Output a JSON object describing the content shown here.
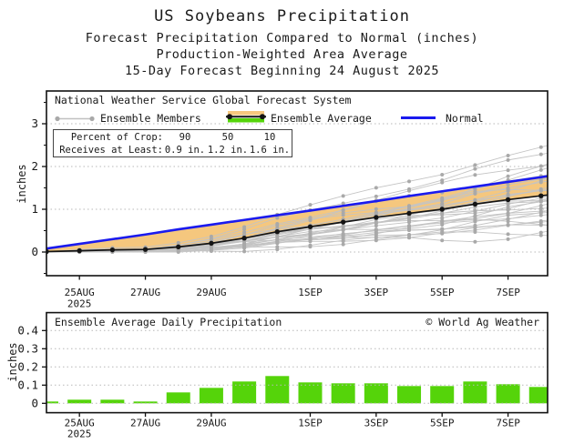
{
  "header": {
    "title": "US Soybeans Precipitation",
    "line2": "Forecast Precipitation Compared to Normal (inches)",
    "line3": "Production-Weighted Area Average",
    "line4": "15-Day Forecast Beginning 24 August 2025"
  },
  "top_panel": {
    "legend_header": "National Weather Service Global Forecast System",
    "legend": {
      "members": "Ensemble Members",
      "average": "Ensemble Average",
      "normal": "Normal"
    },
    "info_box": {
      "rows": [
        {
          "label": "Percent of Crop:",
          "v1": "90",
          "v2": "50",
          "v3": "10"
        },
        {
          "label": "Receives at Least:",
          "v1": "0.9 in.",
          "v2": "1.2 in.",
          "v3": "1.6 in."
        }
      ]
    },
    "ylabel": "inches"
  },
  "bottom_panel": {
    "title": "Ensemble Average Daily Precipitation",
    "credit": "© World Ag Weather",
    "ylabel": "inches"
  },
  "chart_data": [
    {
      "type": "line",
      "title": "Forecast cumulative precipitation compared to normal",
      "x": [
        "24AUG",
        "25AUG",
        "26AUG",
        "27AUG",
        "28AUG",
        "29AUG",
        "30AUG",
        "31AUG",
        "1SEP",
        "2SEP",
        "3SEP",
        "4SEP",
        "5SEP",
        "6SEP",
        "7SEP",
        "8SEP"
      ],
      "xtick_indices": [
        1,
        3,
        5,
        8,
        10,
        12,
        14
      ],
      "xtick_labels": [
        "25AUG",
        "27AUG",
        "29AUG",
        "1SEP",
        "3SEP",
        "5SEP",
        "7SEP"
      ],
      "year_label": "2025",
      "ylabel": "inches",
      "ylim": [
        -0.55,
        3.77
      ],
      "yticks": [
        0,
        1,
        2,
        3
      ],
      "y_minor_ticks": [
        -0.5,
        0.5,
        1.5,
        2.5,
        3.5
      ],
      "grid": "dotted horizontal",
      "legend_position": "top-left-inside",
      "series": [
        {
          "name": "Ensemble Average",
          "values": [
            0.01,
            0.03,
            0.05,
            0.06,
            0.12,
            0.205,
            0.325,
            0.475,
            0.59,
            0.7,
            0.81,
            0.905,
            1.0,
            1.12,
            1.225,
            1.315
          ]
        },
        {
          "name": "Normal",
          "values": [
            0.08,
            0.19,
            0.3,
            0.41,
            0.53,
            0.64,
            0.75,
            0.86,
            0.97,
            1.08,
            1.19,
            1.31,
            1.42,
            1.53,
            1.64,
            1.75
          ]
        },
        {
          "name": "Ensemble Members",
          "count": 30,
          "final_values": [
            2.42,
            2.25,
            2.1,
            1.95,
            1.85,
            1.78,
            1.7,
            1.64,
            1.58,
            1.52,
            1.47,
            1.42,
            1.37,
            1.32,
            1.27,
            1.22,
            1.17,
            1.12,
            1.07,
            1.02,
            0.97,
            0.92,
            0.87,
            0.82,
            0.77,
            0.72,
            0.66,
            0.6,
            0.52,
            0.46
          ]
        }
      ],
      "annotations": {
        "percent_of_crop": [
          90,
          50,
          10
        ],
        "receives_at_least_inches": [
          0.9,
          1.2,
          1.6
        ]
      },
      "colors": {
        "normal": "#1a1aee",
        "average": "#141414",
        "members": "#c4c4c4",
        "member_dots": "#a9a9a9",
        "deficit_fill": "#f5c77e",
        "surplus_fill": "#55d40a",
        "grid": "#b8b8b8",
        "text": "#1a1a1a"
      }
    },
    {
      "type": "bar",
      "title": "Ensemble Average Daily Precipitation",
      "categories": [
        "24AUG",
        "25AUG",
        "26AUG",
        "27AUG",
        "28AUG",
        "29AUG",
        "30AUG",
        "31AUG",
        "1SEP",
        "2SEP",
        "3SEP",
        "4SEP",
        "5SEP",
        "6SEP",
        "7SEP",
        "8SEP"
      ],
      "values": [
        0.01,
        0.02,
        0.02,
        0.01,
        0.06,
        0.085,
        0.12,
        0.15,
        0.115,
        0.11,
        0.11,
        0.095,
        0.095,
        0.12,
        0.105,
        0.09
      ],
      "xtick_indices": [
        1,
        3,
        5,
        8,
        10,
        12,
        14
      ],
      "xtick_labels": [
        "25AUG",
        "27AUG",
        "29AUG",
        "1SEP",
        "3SEP",
        "5SEP",
        "7SEP"
      ],
      "year_label": "2025",
      "ylabel": "inches",
      "ylim": [
        -0.05,
        0.5
      ],
      "yticks": [
        0,
        0.1,
        0.2,
        0.3,
        0.4
      ],
      "grid": "dotted horizontal",
      "bar_color": "#55d40a"
    }
  ]
}
